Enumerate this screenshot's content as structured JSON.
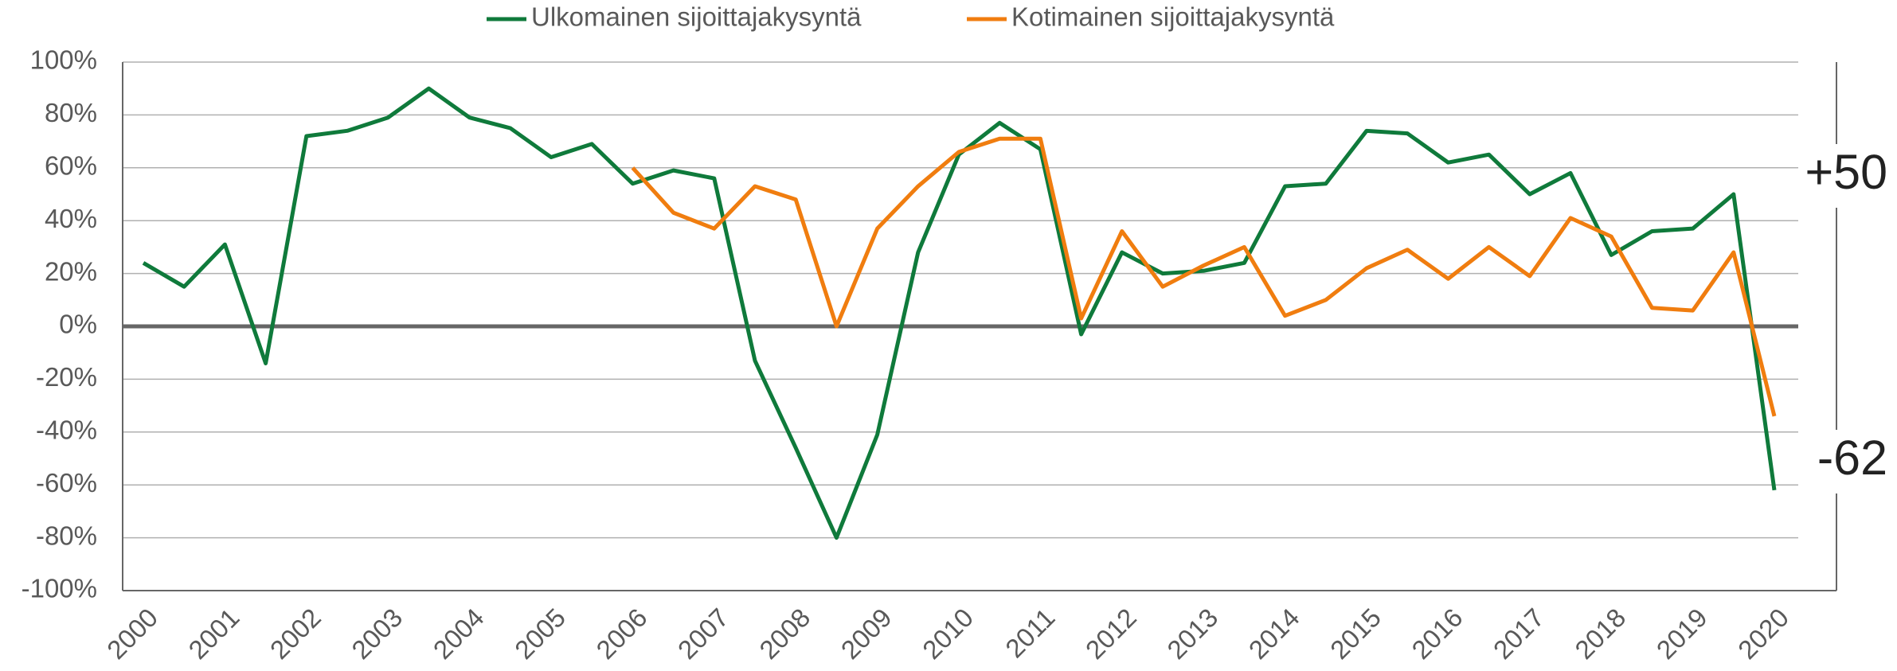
{
  "chart_data": {
    "type": "line",
    "categories": [
      "2000",
      null,
      "2001",
      null,
      "2002",
      null,
      "2003",
      null,
      "2004",
      null,
      "2005",
      null,
      "2006",
      null,
      "2007",
      null,
      "2008",
      null,
      "2009",
      null,
      "2010",
      null,
      "2011",
      null,
      "2012",
      null,
      "2013",
      null,
      "2014",
      null,
      "2015",
      null,
      "2016",
      null,
      "2017",
      null,
      "2018",
      null,
      "2019",
      null,
      "2020"
    ],
    "series": [
      {
        "name": "Ulkomainen sijoittajakysyntä",
        "color": "#0f7a3b",
        "values": [
          24,
          15,
          31,
          -14,
          72,
          74,
          79,
          90,
          79,
          75,
          64,
          69,
          54,
          59,
          56,
          -13,
          -46,
          -80,
          -41,
          28,
          65,
          77,
          67,
          -3,
          28,
          20,
          21,
          24,
          53,
          54,
          74,
          73,
          62,
          65,
          50,
          58,
          27,
          36,
          37,
          50,
          -62
        ]
      },
      {
        "name": "Kotimainen sijoittajakysyntä",
        "color": "#f07d0f",
        "values": [
          null,
          null,
          null,
          null,
          null,
          null,
          null,
          null,
          null,
          null,
          null,
          null,
          60,
          43,
          37,
          53,
          48,
          0,
          37,
          53,
          66,
          71,
          71,
          3,
          36,
          15,
          23,
          30,
          4,
          10,
          22,
          29,
          18,
          30,
          19,
          41,
          34,
          7,
          6,
          28,
          -34
        ]
      }
    ],
    "ylim": [
      -100,
      100
    ],
    "yticks": [
      {
        "value": -100,
        "label": "-100%"
      },
      {
        "value": -80,
        "label": "-80%"
      },
      {
        "value": -60,
        "label": "-60%"
      },
      {
        "value": -40,
        "label": "-40%"
      },
      {
        "value": -20,
        "label": "-20%"
      },
      {
        "value": 0,
        "label": "0%"
      },
      {
        "value": 20,
        "label": "20%"
      },
      {
        "value": 40,
        "label": "40%"
      },
      {
        "value": 60,
        "label": "60%"
      },
      {
        "value": 80,
        "label": "80%"
      },
      {
        "value": 100,
        "label": "100%"
      }
    ],
    "grid": true,
    "legend": "top",
    "annotations": [
      "+50",
      "-62"
    ]
  }
}
